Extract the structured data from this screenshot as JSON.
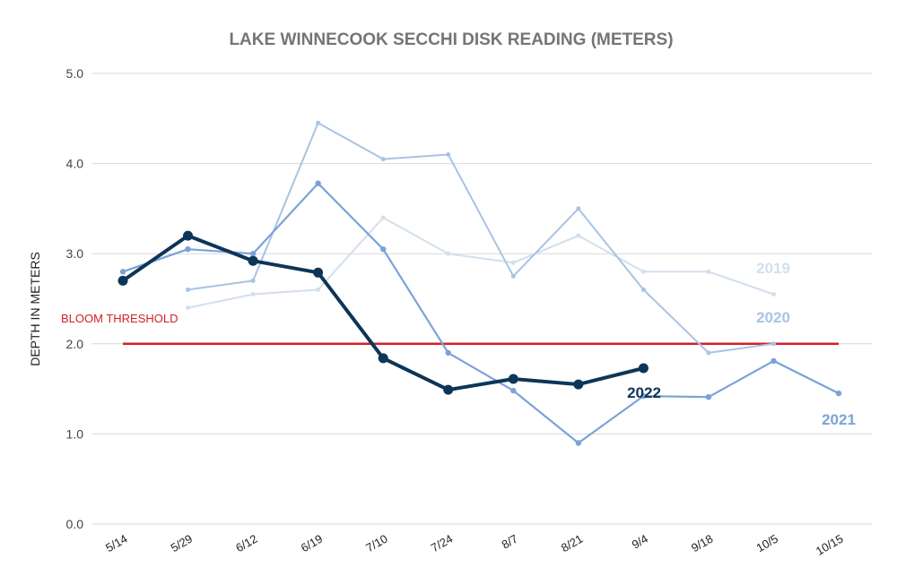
{
  "chart_data": {
    "type": "line",
    "title": "LAKE WINNECOOK SECCHI DISK READING (METERS)",
    "ylabel": "DEPTH IN METERS",
    "xlabel": "",
    "ylim": [
      0,
      5
    ],
    "yticks": [
      "0.0",
      "1.0",
      "2.0",
      "3.0",
      "4.0",
      "5.0"
    ],
    "categories": [
      "5/14",
      "5/29",
      "6/12",
      "6/19",
      "7/10",
      "7/24",
      "8/7",
      "8/21",
      "9/4",
      "9/18",
      "10/5",
      "10/15"
    ],
    "grid": true,
    "threshold": {
      "label": "BLOOM THRESHOLD",
      "value": 2.0,
      "color": "#d32027"
    },
    "series": [
      {
        "name": "2019",
        "color": "#d3dfec",
        "values": [
          null,
          2.4,
          2.55,
          2.6,
          3.4,
          3.0,
          2.9,
          3.2,
          2.8,
          2.8,
          2.55,
          null
        ]
      },
      {
        "name": "2020",
        "color": "#a9c3e3",
        "values": [
          null,
          2.6,
          2.7,
          4.45,
          4.05,
          4.1,
          2.75,
          3.5,
          2.6,
          1.9,
          2.0,
          null
        ]
      },
      {
        "name": "2021",
        "color": "#7aa3d8",
        "values": [
          2.8,
          3.05,
          3.0,
          3.78,
          3.05,
          1.9,
          1.48,
          0.9,
          1.42,
          1.41,
          1.81,
          1.45
        ]
      },
      {
        "name": "2022",
        "color": "#0d3558",
        "values": [
          2.7,
          3.2,
          2.92,
          2.79,
          1.84,
          1.49,
          1.61,
          1.55,
          1.73,
          null,
          null,
          null
        ]
      }
    ]
  }
}
